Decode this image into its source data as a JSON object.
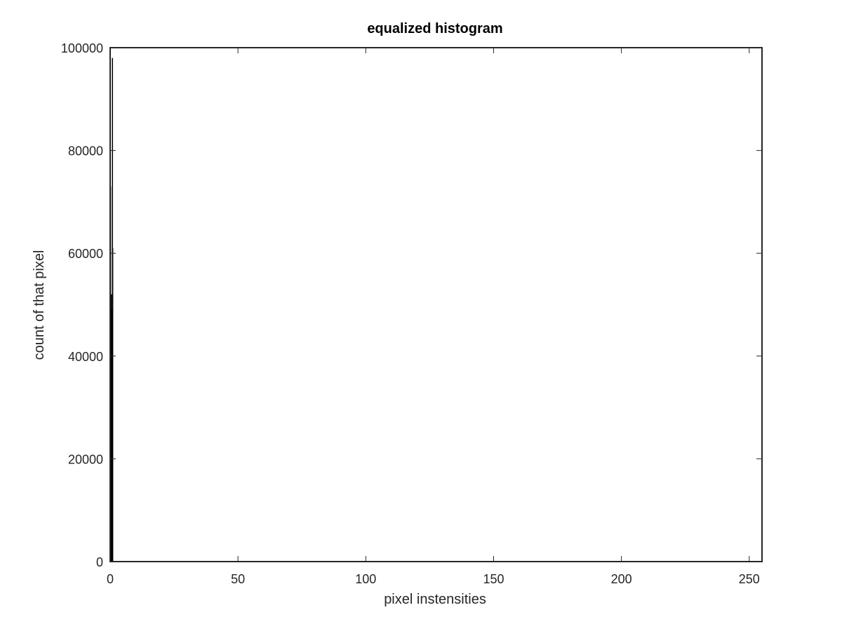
{
  "chart_data": {
    "type": "bar",
    "title": "equalized histogram",
    "xlabel": "pixel instensities",
    "ylabel": "count of that pixel",
    "xlim": [
      0,
      255
    ],
    "ylim": [
      0,
      100000
    ],
    "xticks": [
      0,
      50,
      100,
      150,
      200,
      250
    ],
    "yticks": [
      0,
      20000,
      40000,
      60000,
      80000,
      100000
    ],
    "grid": false,
    "bar_color": "#000000",
    "x": [
      0,
      0.15,
      0.3,
      0.45,
      0.6,
      0.75,
      0.9,
      1.0
    ],
    "values": [
      44000,
      73000,
      38000,
      52000,
      30000,
      49000,
      98000,
      61000
    ]
  }
}
